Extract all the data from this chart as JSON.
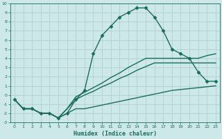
{
  "xlabel": "Humidex (Indice chaleur)",
  "x_hours": [
    0,
    1,
    2,
    3,
    4,
    5,
    6,
    7,
    8,
    9,
    10,
    11,
    12,
    13,
    14,
    15,
    16,
    17,
    18,
    19,
    20,
    21,
    22,
    23
  ],
  "humidex_main": [
    -0.5,
    -1.5,
    -1.5,
    -2,
    -2,
    -2.5,
    -2,
    -0.5,
    0.5,
    4.5,
    6.5,
    7.5,
    8.5,
    9,
    9.5,
    9.5,
    8.5,
    7,
    5,
    4.5,
    4,
    2.5,
    1.5,
    1.5
  ],
  "humidex_low": [
    -0.5,
    -1.5,
    -1.5,
    -2,
    -2,
    -2.5,
    -2,
    -1.5,
    -1.5,
    -1.3,
    -1.1,
    -0.9,
    -0.7,
    -0.5,
    -0.3,
    -0.1,
    0.1,
    0.3,
    0.5,
    0.6,
    0.7,
    0.8,
    0.9,
    1.0
  ],
  "humidex_mid": [
    -0.5,
    -1.5,
    -1.5,
    -2,
    -2,
    -2.5,
    -1.5,
    -0.5,
    0.0,
    0.4,
    0.9,
    1.3,
    1.8,
    2.2,
    2.7,
    3.1,
    3.5,
    3.5,
    3.5,
    3.5,
    3.5,
    3.5,
    3.5,
    3.5
  ],
  "humidex_high": [
    -0.5,
    -1.5,
    -1.5,
    -2,
    -2,
    -2.5,
    -1.5,
    -0.2,
    0.3,
    0.8,
    1.3,
    1.9,
    2.4,
    3.0,
    3.5,
    4.0,
    4.0,
    4.0,
    4.0,
    4.0,
    4.0,
    4.0,
    4.3,
    4.5
  ],
  "ylim": [
    -3,
    10
  ],
  "xlim": [
    -0.5,
    23.5
  ],
  "yticks": [
    -3,
    -2,
    -1,
    0,
    1,
    2,
    3,
    4,
    5,
    6,
    7,
    8,
    9,
    10
  ],
  "xticks": [
    0,
    1,
    2,
    3,
    4,
    5,
    6,
    7,
    8,
    9,
    10,
    11,
    12,
    13,
    14,
    15,
    16,
    17,
    18,
    19,
    20,
    21,
    22,
    23
  ],
  "bg_color": "#cce8e8",
  "grid_color": "#aacccc",
  "line_color": "#1a6b5a",
  "marker": "D",
  "marker_size": 2.5,
  "line_width": 1.0
}
